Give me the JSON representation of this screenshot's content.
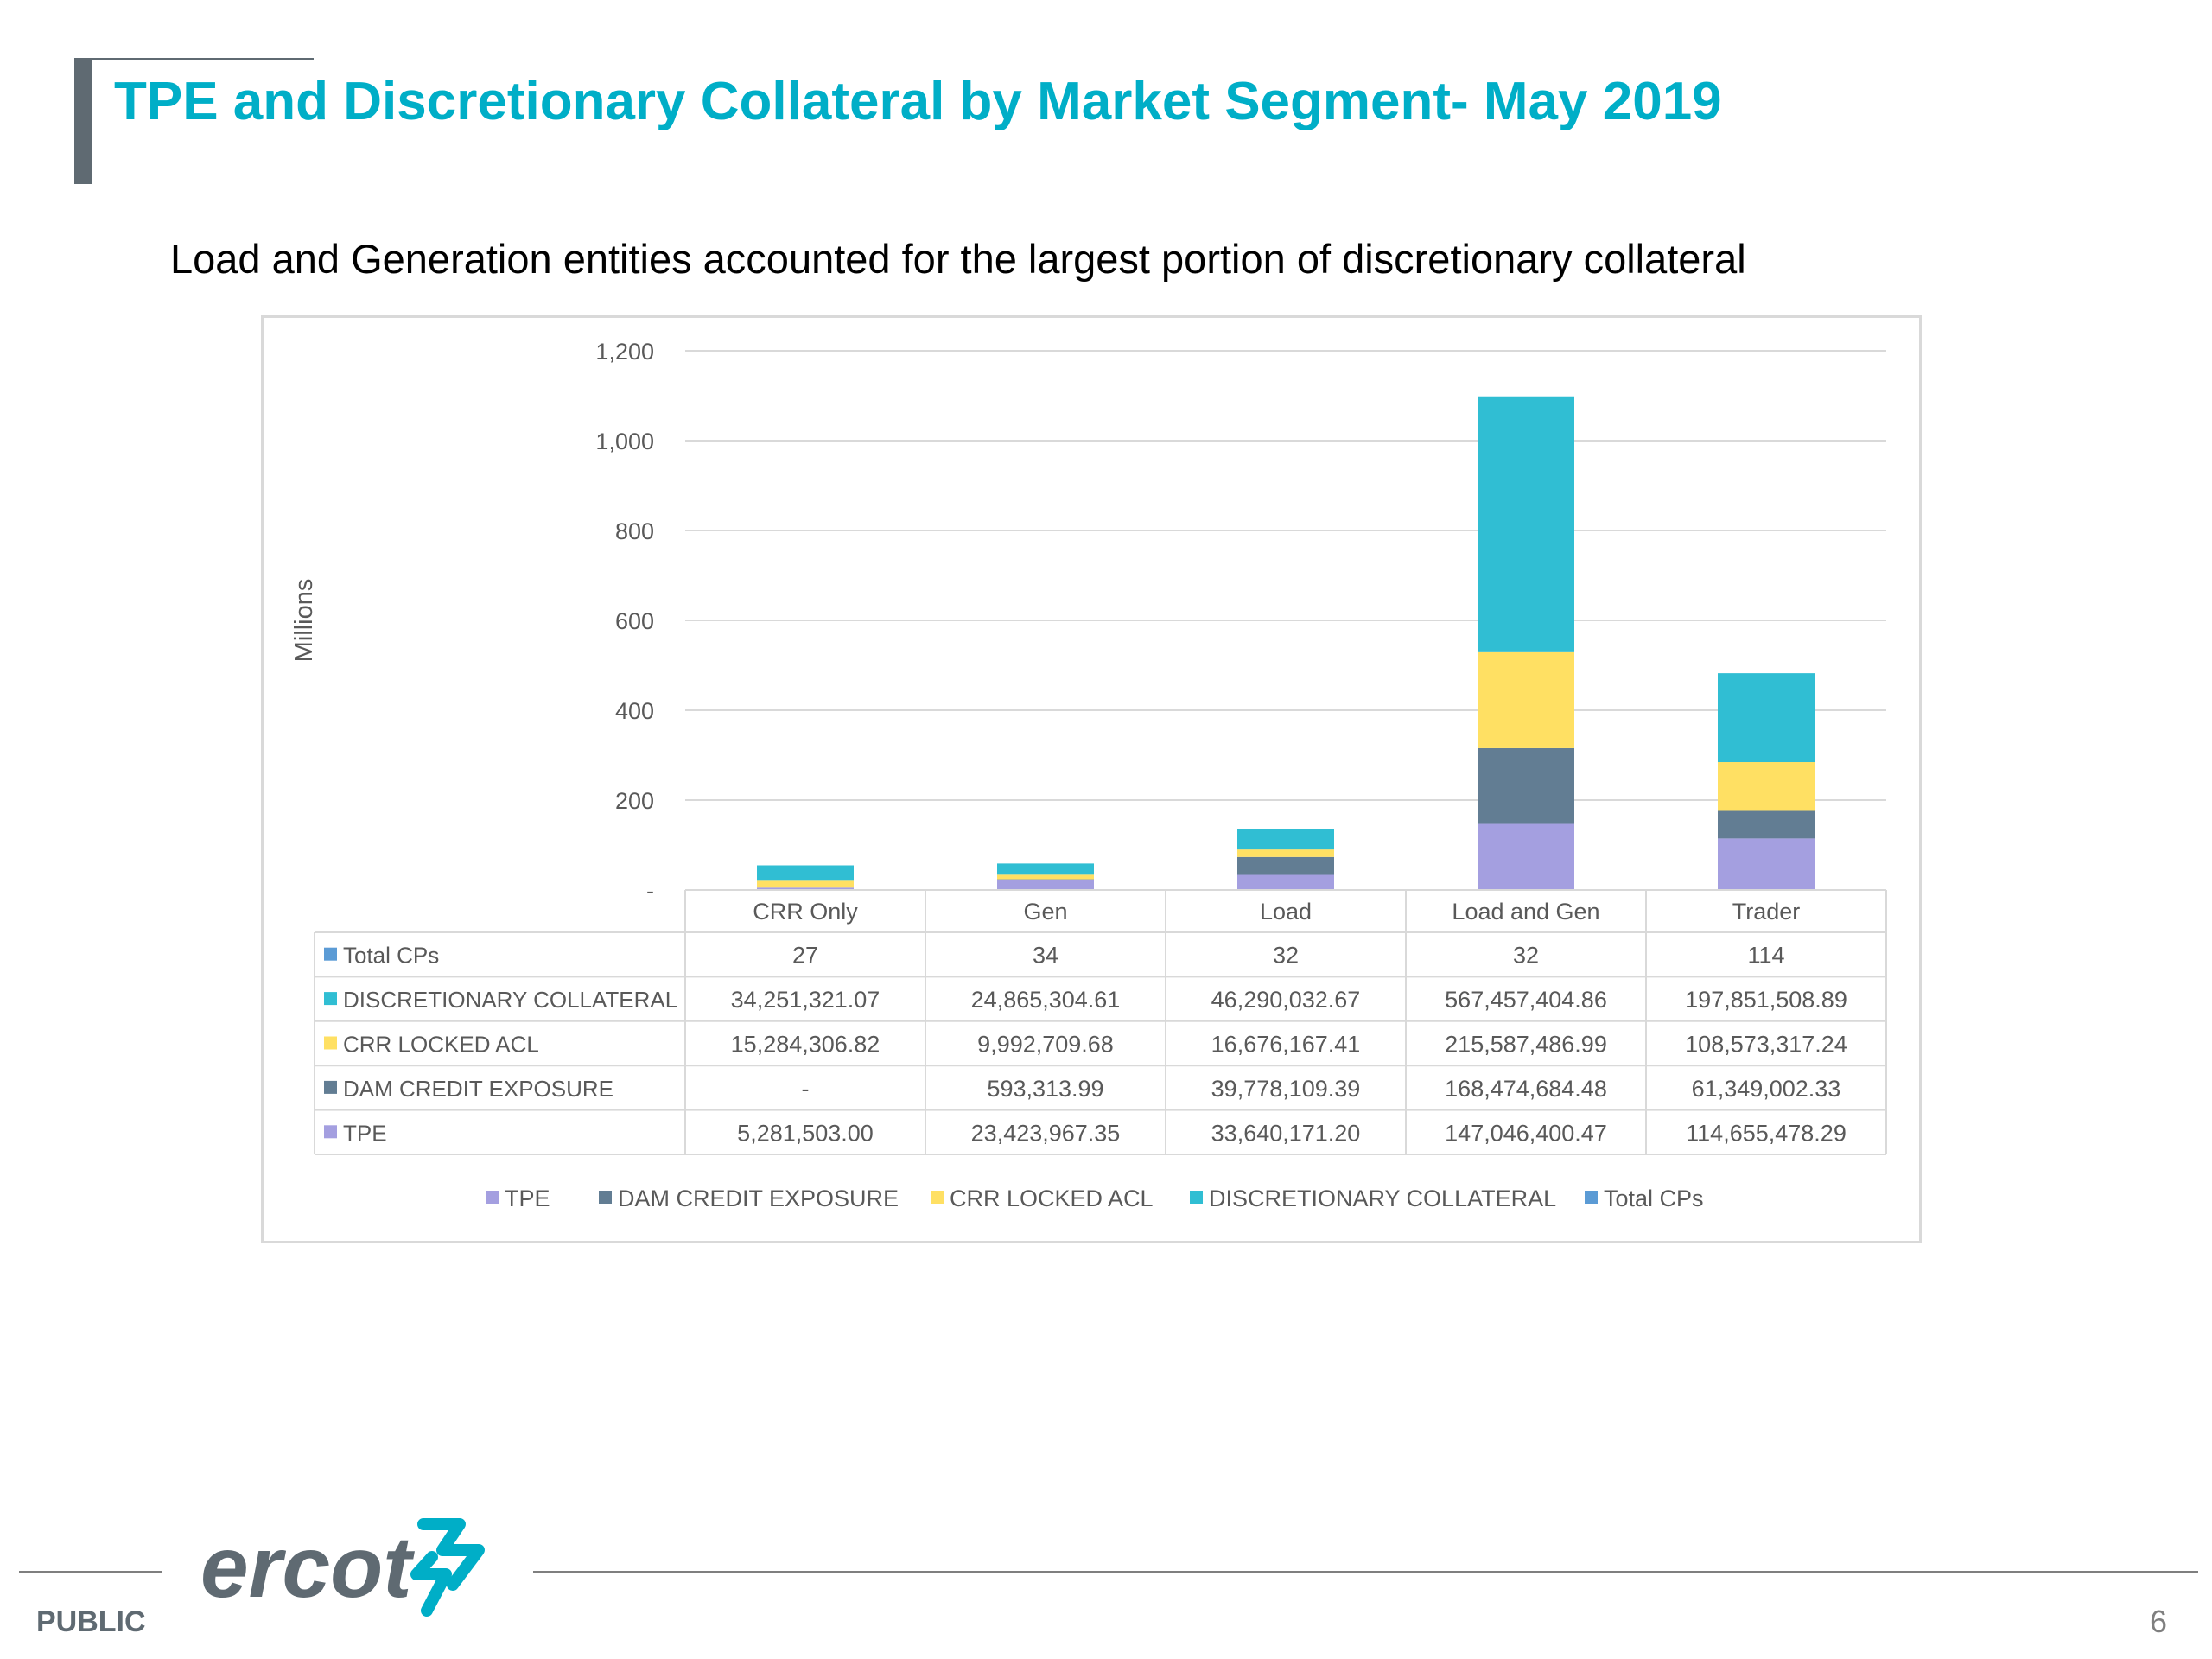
{
  "slide": {
    "title": "TPE and Discretionary Collateral by Market Segment- May 2019",
    "subtitle": "Load and Generation entities accounted for the largest portion of discretionary collateral"
  },
  "footer": {
    "classification": "PUBLIC",
    "page_number": "6",
    "logo_text": "ercot"
  },
  "colors": {
    "title": "#00aec7",
    "tpe": "#a49fe0",
    "dam_credit_exposure": "#627d93",
    "crr_locked_acl": "#ffe063",
    "discretionary_collateral": "#30bed3",
    "total_cps": "#5b9bd5"
  },
  "chart_data": {
    "type": "bar",
    "stacked": true,
    "ylabel": "Millions",
    "ylim": [
      0,
      1200
    ],
    "yticks": [
      0,
      200,
      400,
      600,
      800,
      1000,
      1200
    ],
    "ytick_labels": [
      "-",
      "200",
      "400",
      "600",
      "800",
      "1,000",
      "1,200"
    ],
    "grid": true,
    "legend_position": "bottom",
    "categories": [
      "CRR Only",
      "Gen",
      "Load",
      "Load and Gen",
      "Trader"
    ],
    "series": [
      {
        "name": "TPE",
        "color": "#a49fe0",
        "values": [
          5.2815,
          23.424,
          33.6402,
          147.0464,
          114.6555
        ]
      },
      {
        "name": "DAM CREDIT EXPOSURE",
        "color": "#627d93",
        "values": [
          0,
          0.5933,
          39.7781,
          168.4747,
          61.349
        ]
      },
      {
        "name": "CRR LOCKED ACL",
        "color": "#ffe063",
        "values": [
          15.2843,
          9.9927,
          16.6762,
          215.5875,
          108.5733
        ]
      },
      {
        "name": "DISCRETIONARY COLLATERAL",
        "color": "#30bed3",
        "values": [
          34.2513,
          24.8653,
          46.29,
          567.4574,
          197.8515
        ]
      },
      {
        "name": "Total CPs",
        "color": "#5b9bd5",
        "values": [
          27,
          34,
          32,
          32,
          114
        ]
      }
    ],
    "legend": [
      "TPE",
      "DAM CREDIT EXPOSURE",
      "CRR LOCKED ACL",
      "DISCRETIONARY COLLATERAL",
      "Total CPs"
    ],
    "table": {
      "rows": [
        {
          "label": "Total CPs",
          "color": "#5b9bd5",
          "cells": [
            "27",
            "34",
            "32",
            "32",
            "114"
          ]
        },
        {
          "label": "DISCRETIONARY COLLATERAL",
          "color": "#30bed3",
          "cells": [
            "34,251,321.07",
            "24,865,304.61",
            "46,290,032.67",
            "567,457,404.86",
            "197,851,508.89"
          ]
        },
        {
          "label": "CRR LOCKED ACL",
          "color": "#ffe063",
          "cells": [
            "15,284,306.82",
            "9,992,709.68",
            "16,676,167.41",
            "215,587,486.99",
            "108,573,317.24"
          ]
        },
        {
          "label": "DAM CREDIT EXPOSURE",
          "color": "#627d93",
          "cells": [
            "-",
            "593,313.99",
            "39,778,109.39",
            "168,474,684.48",
            "61,349,002.33"
          ]
        },
        {
          "label": "TPE",
          "color": "#a49fe0",
          "cells": [
            "5,281,503.00",
            "23,423,967.35",
            "33,640,171.20",
            "147,046,400.47",
            "114,655,478.29"
          ]
        }
      ]
    }
  }
}
